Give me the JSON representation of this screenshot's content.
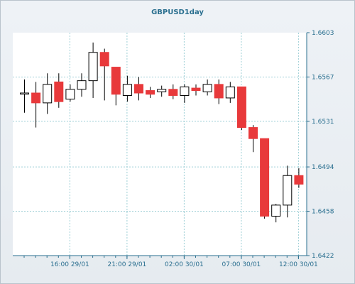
{
  "chart_data": {
    "type": "candlestick",
    "title": "GBPUSD1day",
    "ylim": [
      1.6422,
      1.6603
    ],
    "y_ticks": [
      "1.6603",
      "1.6567",
      "1.6531",
      "1.6494",
      "1.6458",
      "1.6422"
    ],
    "x_ticks": [
      {
        "label": "16:00 29/01",
        "index": 4
      },
      {
        "label": "21:00 29/01",
        "index": 9
      },
      {
        "label": "02:00 30/01",
        "index": 14
      },
      {
        "label": "07:00 30/01",
        "index": 19
      },
      {
        "label": "12:00 30/01",
        "index": 24
      }
    ],
    "candles": [
      {
        "o": 1.6554,
        "h": 1.6565,
        "l": 1.6538,
        "c": 1.6554
      },
      {
        "o": 1.6554,
        "h": 1.6563,
        "l": 1.6526,
        "c": 1.6546
      },
      {
        "o": 1.6546,
        "h": 1.657,
        "l": 1.6537,
        "c": 1.6561
      },
      {
        "o": 1.6563,
        "h": 1.657,
        "l": 1.6542,
        "c": 1.6547
      },
      {
        "o": 1.6549,
        "h": 1.6561,
        "l": 1.6547,
        "c": 1.6557
      },
      {
        "o": 1.6557,
        "h": 1.657,
        "l": 1.6551,
        "c": 1.6564
      },
      {
        "o": 1.6564,
        "h": 1.6595,
        "l": 1.655,
        "c": 1.6587
      },
      {
        "o": 1.6587,
        "h": 1.659,
        "l": 1.6548,
        "c": 1.6576
      },
      {
        "o": 1.6575,
        "h": 1.6575,
        "l": 1.6544,
        "c": 1.6553
      },
      {
        "o": 1.6552,
        "h": 1.6568,
        "l": 1.6547,
        "c": 1.6561
      },
      {
        "o": 1.6561,
        "h": 1.6567,
        "l": 1.6548,
        "c": 1.6554
      },
      {
        "o": 1.6556,
        "h": 1.6559,
        "l": 1.655,
        "c": 1.6553
      },
      {
        "o": 1.6555,
        "h": 1.656,
        "l": 1.6551,
        "c": 1.6557
      },
      {
        "o": 1.6557,
        "h": 1.6561,
        "l": 1.6549,
        "c": 1.6552
      },
      {
        "o": 1.6552,
        "h": 1.6561,
        "l": 1.6546,
        "c": 1.6559
      },
      {
        "o": 1.6558,
        "h": 1.6561,
        "l": 1.6552,
        "c": 1.6556
      },
      {
        "o": 1.6555,
        "h": 1.6565,
        "l": 1.6552,
        "c": 1.6561
      },
      {
        "o": 1.6561,
        "h": 1.6565,
        "l": 1.6545,
        "c": 1.655
      },
      {
        "o": 1.655,
        "h": 1.6563,
        "l": 1.6546,
        "c": 1.6559
      },
      {
        "o": 1.6559,
        "h": 1.6559,
        "l": 1.6524,
        "c": 1.6526
      },
      {
        "o": 1.6526,
        "h": 1.6528,
        "l": 1.6506,
        "c": 1.6517
      },
      {
        "o": 1.6517,
        "h": 1.6517,
        "l": 1.6452,
        "c": 1.6454
      },
      {
        "o": 1.6454,
        "h": 1.6464,
        "l": 1.6449,
        "c": 1.6463
      },
      {
        "o": 1.6463,
        "h": 1.6495,
        "l": 1.6453,
        "c": 1.6487
      },
      {
        "o": 1.6487,
        "h": 1.6493,
        "l": 1.6477,
        "c": 1.648
      }
    ],
    "colors": {
      "up": "#ffffff",
      "down": "#e8393b",
      "outline": "#000000",
      "grid": "#9fcfd6",
      "axis": "#2a6f8f"
    }
  }
}
